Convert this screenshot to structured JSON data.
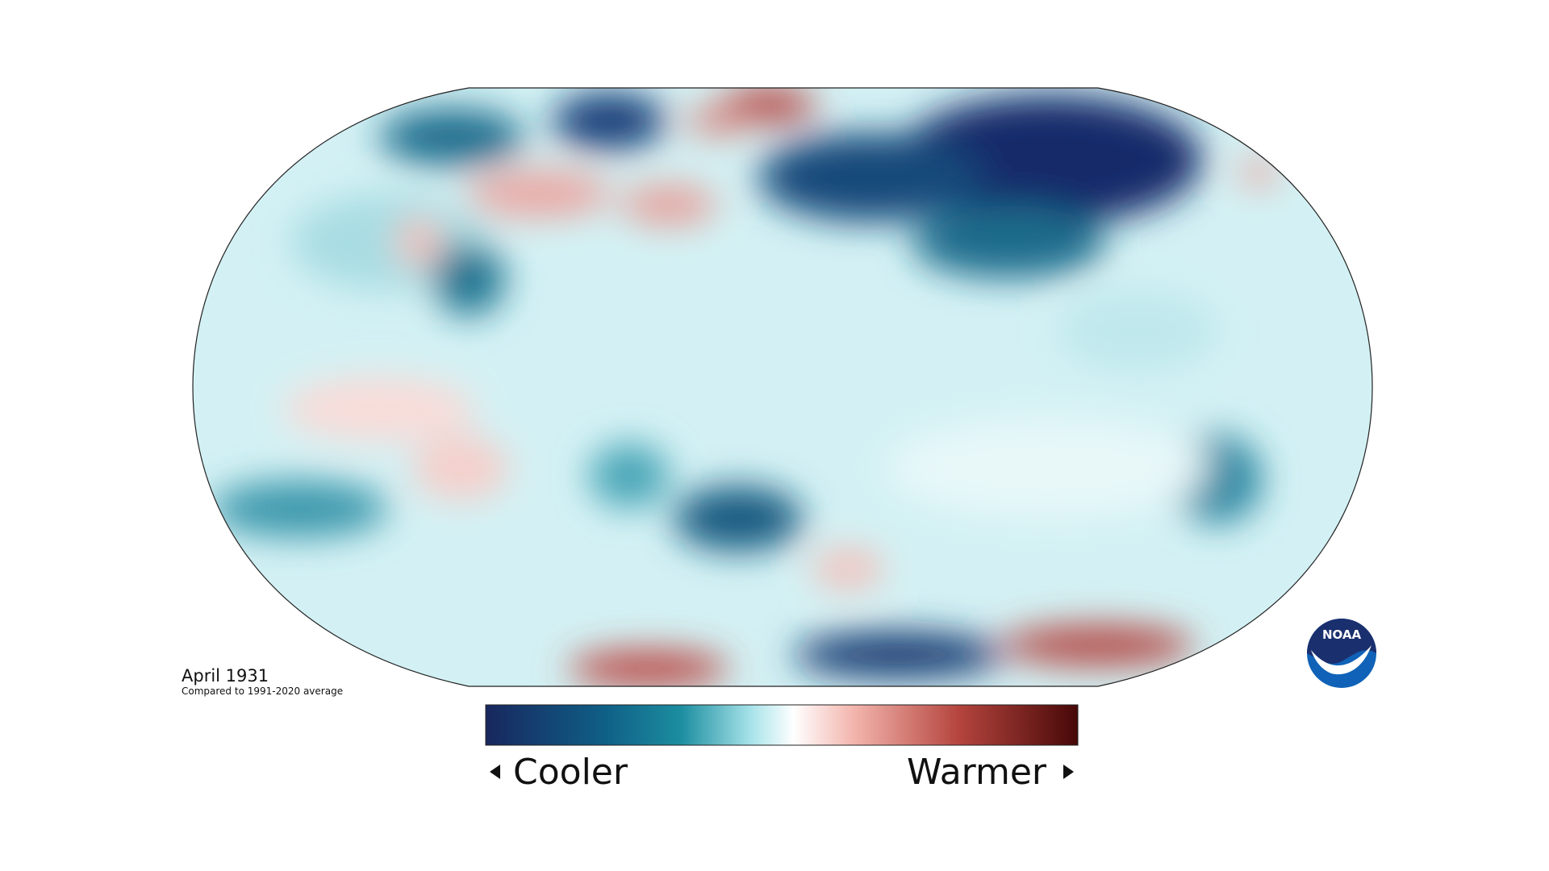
{
  "map": {
    "title": "April 1931",
    "subtitle": "Compared to 1991-2020 average"
  },
  "legend": {
    "low": "Cooler",
    "high": "Warmer"
  },
  "logo": "NOAA"
}
